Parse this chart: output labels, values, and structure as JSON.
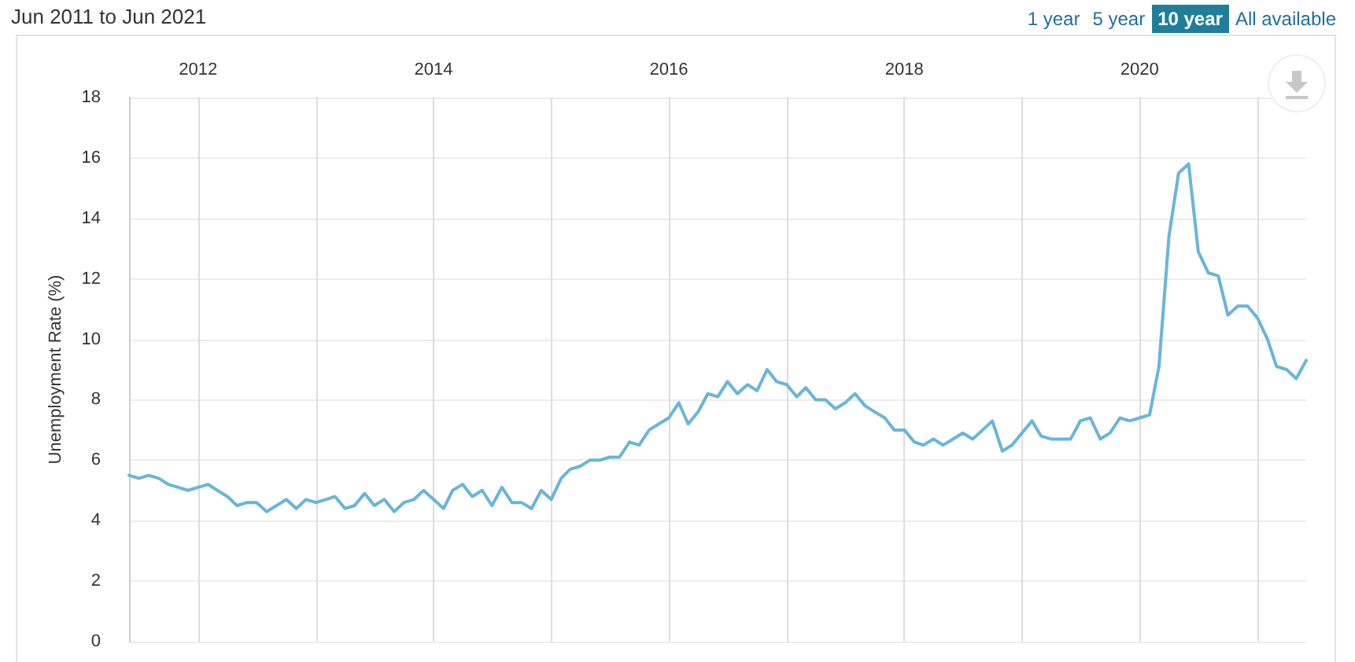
{
  "chart_data": {
    "type": "line",
    "title": "Jun 2011 to Jun 2021",
    "ylabel": "Unemployment Rate (%)",
    "annotations": [
      "1 year",
      "5 year",
      "10 year",
      "All available"
    ],
    "x": [
      "2011-06",
      "2011-07",
      "2011-08",
      "2011-09",
      "2011-10",
      "2011-11",
      "2011-12",
      "2012-01",
      "2012-02",
      "2012-03",
      "2012-04",
      "2012-05",
      "2012-06",
      "2012-07",
      "2012-08",
      "2012-09",
      "2012-10",
      "2012-11",
      "2012-12",
      "2013-01",
      "2013-02",
      "2013-03",
      "2013-04",
      "2013-05",
      "2013-06",
      "2013-07",
      "2013-08",
      "2013-09",
      "2013-10",
      "2013-11",
      "2013-12",
      "2014-01",
      "2014-02",
      "2014-03",
      "2014-04",
      "2014-05",
      "2014-06",
      "2014-07",
      "2014-08",
      "2014-09",
      "2014-10",
      "2014-11",
      "2014-12",
      "2015-01",
      "2015-02",
      "2015-03",
      "2015-04",
      "2015-05",
      "2015-06",
      "2015-07",
      "2015-08",
      "2015-09",
      "2015-10",
      "2015-11",
      "2015-12",
      "2016-01",
      "2016-02",
      "2016-03",
      "2016-04",
      "2016-05",
      "2016-06",
      "2016-07",
      "2016-08",
      "2016-09",
      "2016-10",
      "2016-11",
      "2016-12",
      "2017-01",
      "2017-02",
      "2017-03",
      "2017-04",
      "2017-05",
      "2017-06",
      "2017-07",
      "2017-08",
      "2017-09",
      "2017-10",
      "2017-11",
      "2017-12",
      "2018-01",
      "2018-02",
      "2018-03",
      "2018-04",
      "2018-05",
      "2018-06",
      "2018-07",
      "2018-08",
      "2018-09",
      "2018-10",
      "2018-11",
      "2018-12",
      "2019-01",
      "2019-02",
      "2019-03",
      "2019-04",
      "2019-05",
      "2019-06",
      "2019-07",
      "2019-08",
      "2019-09",
      "2019-10",
      "2019-11",
      "2019-12",
      "2020-01",
      "2020-02",
      "2020-03",
      "2020-04",
      "2020-05",
      "2020-06",
      "2020-07",
      "2020-08",
      "2020-09",
      "2020-10",
      "2020-11",
      "2020-12",
      "2021-01",
      "2021-02",
      "2021-03",
      "2021-04",
      "2021-05",
      "2021-06"
    ],
    "series": [
      {
        "color": "#6ab4d9",
        "values": [
          5.5,
          5.4,
          5.5,
          5.4,
          5.2,
          5.1,
          5.0,
          5.1,
          5.2,
          5.0,
          4.8,
          4.5,
          4.6,
          4.6,
          4.3,
          4.5,
          4.7,
          4.4,
          4.7,
          4.6,
          4.7,
          4.8,
          4.4,
          4.5,
          4.9,
          4.5,
          4.7,
          4.3,
          4.6,
          4.7,
          5.0,
          4.7,
          4.4,
          5.0,
          5.2,
          4.8,
          5.0,
          4.5,
          5.1,
          4.6,
          4.6,
          4.4,
          5.0,
          4.7,
          5.4,
          5.7,
          5.8,
          6.0,
          6.0,
          6.1,
          6.1,
          6.6,
          6.5,
          7.0,
          7.2,
          7.4,
          7.9,
          7.2,
          7.6,
          8.2,
          8.1,
          8.6,
          8.2,
          8.5,
          8.3,
          9.0,
          8.6,
          8.5,
          8.1,
          8.4,
          8.0,
          8.0,
          7.7,
          7.9,
          8.2,
          7.8,
          7.6,
          7.4,
          7.0,
          7.0,
          6.6,
          6.5,
          6.7,
          6.5,
          6.7,
          6.9,
          6.7,
          7.0,
          7.3,
          6.3,
          6.5,
          6.9,
          7.3,
          6.8,
          6.7,
          6.7,
          6.7,
          7.3,
          7.4,
          6.7,
          6.9,
          7.4,
          7.3,
          7.4,
          7.5,
          9.1,
          13.4,
          15.5,
          15.8,
          12.9,
          12.2,
          12.1,
          10.8,
          11.1,
          11.1,
          10.7,
          10.0,
          9.1,
          9.0,
          8.7,
          9.3
        ]
      }
    ],
    "xlim": [
      "2011-06",
      "2021-06"
    ],
    "xticks": [
      {
        "value": "2012-01",
        "label": "2012"
      },
      {
        "value": "2013-01",
        "label": null
      },
      {
        "value": "2014-01",
        "label": "2014"
      },
      {
        "value": "2015-01",
        "label": null
      },
      {
        "value": "2016-01",
        "label": "2016"
      },
      {
        "value": "2017-01",
        "label": null
      },
      {
        "value": "2018-01",
        "label": "2018"
      },
      {
        "value": "2019-01",
        "label": null
      },
      {
        "value": "2020-01",
        "label": "2020"
      },
      {
        "value": "2021-01",
        "label": null
      }
    ],
    "ylim": [
      0,
      18
    ],
    "yticks": [
      0,
      2,
      4,
      6,
      8,
      10,
      12,
      14,
      16,
      18
    ],
    "grid": true,
    "marker": "none",
    "line_style": "solid"
  }
}
